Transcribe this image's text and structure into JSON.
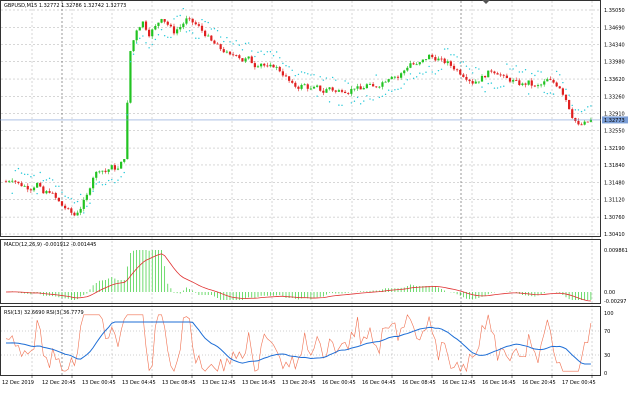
{
  "window": {
    "symbol_header": "GBPUSD,M15  1.32772 1.32786 1.32742 1.32773"
  },
  "panes": {
    "price": {
      "y_ticks": [
        "1.35050",
        "1.34690",
        "1.34340",
        "1.33980",
        "1.33620",
        "1.33260",
        "1.32910",
        "1.32550",
        "1.32190",
        "1.31840",
        "1.31480",
        "1.31120",
        "1.30760",
        "1.30410"
      ],
      "current_price": "1.32773",
      "colors": {
        "bull": "#22c322",
        "bear": "#e02020",
        "sar": "#22c8d8",
        "current_line": "#7b9ed6"
      }
    },
    "macd": {
      "label": "MACD(12,26,9) -0.001912 -0.001445",
      "y_ticks": [
        "0.009861",
        "0.00",
        "-0.00297"
      ],
      "colors": {
        "histogram": "#33cc33",
        "signal": "#e03030"
      }
    },
    "rsi": {
      "label": "RSI(13) 32.6690  RSI(3) 36.7779",
      "y_ticks": [
        "100",
        "70",
        "30",
        "0"
      ],
      "colors": {
        "rsi13": "#1e6ed6",
        "rsi3": "#f07050"
      }
    }
  },
  "time_axis": {
    "labels": [
      "12 Dec 2019",
      "12 Dec 20:45",
      "13 Dec 00:45",
      "13 Dec 04:45",
      "13 Dec 08:45",
      "13 Dec 12:45",
      "13 Dec 16:45",
      "13 Dec 20:45",
      "16 Dec 00:45",
      "16 Dec 04:45",
      "16 Dec 08:45",
      "16 Dec 12:45",
      "16 Dec 16:45",
      "16 Dec 20:45",
      "17 Dec 00:45"
    ]
  },
  "chart_data": {
    "type": "candlestick",
    "symbol": "GBPUSD",
    "timeframe": "M15",
    "ohlc_header": {
      "open": 1.32772,
      "high": 1.32786,
      "low": 1.32742,
      "close": 1.32773
    },
    "price_range": [
      1.3041,
      1.3505
    ],
    "current_price": 1.32773,
    "price_path": [
      [
        0,
        1.315
      ],
      [
        2,
        1.3155
      ],
      [
        4,
        1.3145
      ],
      [
        6,
        1.314
      ],
      [
        8,
        1.3135
      ],
      [
        10,
        1.3145
      ],
      [
        12,
        1.3125
      ],
      [
        14,
        1.313
      ],
      [
        16,
        1.3115
      ],
      [
        18,
        1.31
      ],
      [
        20,
        1.309
      ],
      [
        22,
        1.308
      ],
      [
        24,
        1.3095
      ],
      [
        26,
        1.312
      ],
      [
        28,
        1.316
      ],
      [
        30,
        1.3175
      ],
      [
        32,
        1.317
      ],
      [
        34,
        1.318
      ],
      [
        36,
        1.3175
      ],
      [
        38,
        1.32
      ],
      [
        40,
        1.342
      ],
      [
        42,
        1.3465
      ],
      [
        44,
        1.348
      ],
      [
        46,
        1.3455
      ],
      [
        48,
        1.347
      ],
      [
        50,
        1.349
      ],
      [
        52,
        1.3475
      ],
      [
        54,
        1.346
      ],
      [
        56,
        1.347
      ],
      [
        58,
        1.3485
      ],
      [
        60,
        1.348
      ],
      [
        62,
        1.347
      ],
      [
        64,
        1.3455
      ],
      [
        66,
        1.344
      ],
      [
        68,
        1.343
      ],
      [
        70,
        1.342
      ],
      [
        72,
        1.341
      ],
      [
        74,
        1.3415
      ],
      [
        76,
        1.34
      ],
      [
        78,
        1.3405
      ],
      [
        80,
        1.339
      ],
      [
        82,
        1.3395
      ],
      [
        84,
        1.3385
      ],
      [
        86,
        1.339
      ],
      [
        88,
        1.338
      ],
      [
        90,
        1.3365
      ],
      [
        92,
        1.335
      ],
      [
        94,
        1.3345
      ],
      [
        96,
        1.335
      ],
      [
        98,
        1.334
      ],
      [
        100,
        1.3345
      ],
      [
        102,
        1.3335
      ],
      [
        104,
        1.3345
      ],
      [
        106,
        1.3335
      ],
      [
        108,
        1.334
      ],
      [
        110,
        1.3335
      ],
      [
        112,
        1.3345
      ],
      [
        114,
        1.334
      ],
      [
        116,
        1.335
      ],
      [
        118,
        1.3345
      ],
      [
        120,
        1.335
      ],
      [
        122,
        1.336
      ],
      [
        124,
        1.337
      ],
      [
        126,
        1.3365
      ],
      [
        128,
        1.338
      ],
      [
        130,
        1.3395
      ],
      [
        132,
        1.339
      ],
      [
        134,
        1.34
      ],
      [
        136,
        1.341
      ],
      [
        138,
        1.3405
      ],
      [
        140,
        1.34
      ],
      [
        142,
        1.3395
      ],
      [
        144,
        1.3385
      ],
      [
        146,
        1.3375
      ],
      [
        148,
        1.3365
      ],
      [
        150,
        1.3355
      ],
      [
        152,
        1.336
      ],
      [
        154,
        1.337
      ],
      [
        156,
        1.338
      ],
      [
        158,
        1.3375
      ],
      [
        160,
        1.3365
      ],
      [
        162,
        1.336
      ],
      [
        164,
        1.3355
      ],
      [
        166,
        1.335
      ],
      [
        168,
        1.3355
      ],
      [
        170,
        1.3345
      ],
      [
        172,
        1.335
      ],
      [
        174,
        1.336
      ],
      [
        176,
        1.3355
      ],
      [
        178,
        1.3345
      ],
      [
        180,
        1.332
      ],
      [
        182,
        1.3285
      ],
      [
        184,
        1.3265
      ],
      [
        186,
        1.327
      ],
      [
        188,
        1.3277
      ]
    ],
    "macd_levels": [
      "0.009861",
      "0.00",
      "-0.00297"
    ],
    "rsi_levels": [
      70,
      30
    ],
    "indicators": [
      "Parabolic SAR",
      "MACD(12,26,9)",
      "RSI(13)",
      "RSI(3)"
    ],
    "grid": true
  }
}
